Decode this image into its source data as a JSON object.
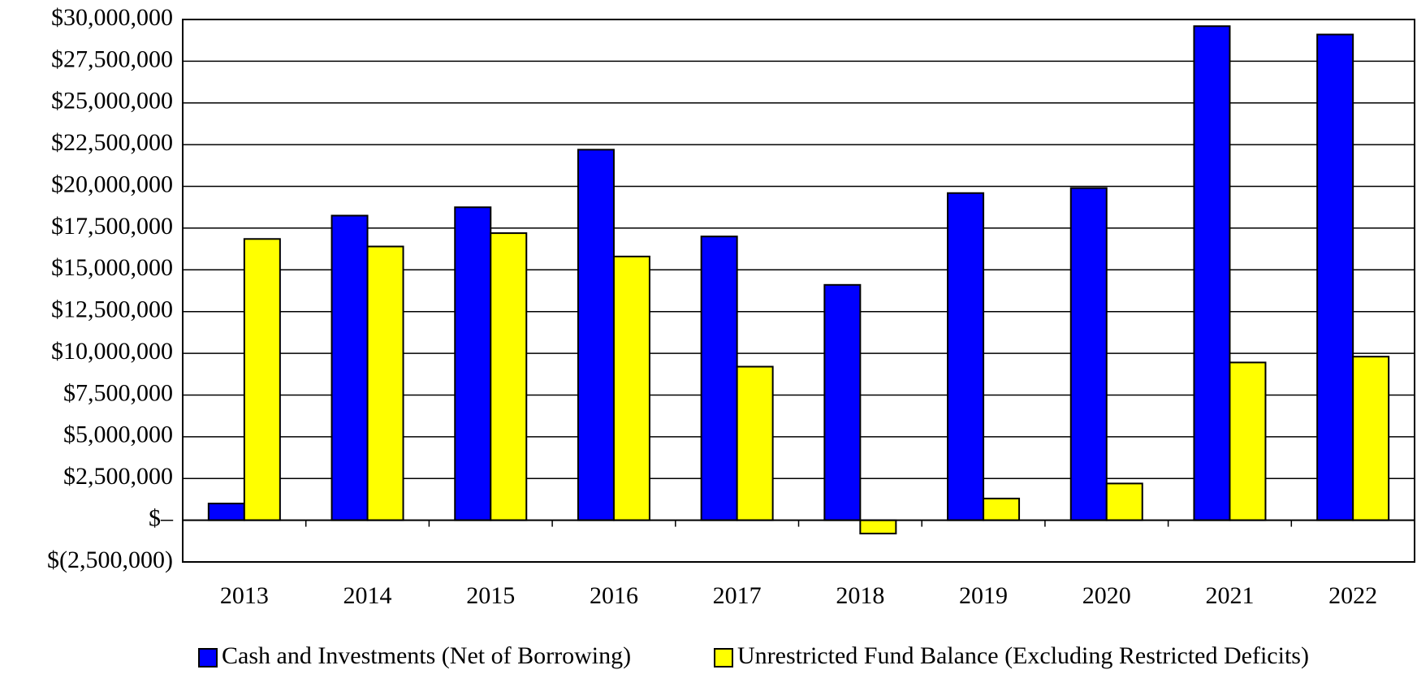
{
  "chart_data": {
    "type": "bar",
    "categories": [
      "2013",
      "2014",
      "2015",
      "2016",
      "2017",
      "2018",
      "2019",
      "2020",
      "2021",
      "2022"
    ],
    "series": [
      {
        "name": "Cash and Investments (Net of Borrowing)",
        "color": "#0000ff",
        "values": [
          1000000,
          18250000,
          18750000,
          22200000,
          17000000,
          14100000,
          19600000,
          19900000,
          29600000,
          29100000
        ]
      },
      {
        "name": "Unrestricted Fund Balance (Excluding Restricted Deficits)",
        "color": "#ffff00",
        "values": [
          16850000,
          16400000,
          17200000,
          15800000,
          9200000,
          -800000,
          1300000,
          2200000,
          9450000,
          9800000
        ]
      }
    ],
    "ylim": [
      -2500000,
      30000000
    ],
    "yticks": [
      {
        "value": -2500000,
        "label": "$(2,500,000)"
      },
      {
        "value": 0,
        "label": "$–"
      },
      {
        "value": 2500000,
        "label": "$2,500,000"
      },
      {
        "value": 5000000,
        "label": "$5,000,000"
      },
      {
        "value": 7500000,
        "label": "$7,500,000"
      },
      {
        "value": 10000000,
        "label": "$10,000,000"
      },
      {
        "value": 12500000,
        "label": "$12,500,000"
      },
      {
        "value": 15000000,
        "label": "$15,000,000"
      },
      {
        "value": 17500000,
        "label": "$17,500,000"
      },
      {
        "value": 20000000,
        "label": "$20,000,000"
      },
      {
        "value": 22500000,
        "label": "$22,500,000"
      },
      {
        "value": 25000000,
        "label": "$25,000,000"
      },
      {
        "value": 27500000,
        "label": "$27,500,000"
      },
      {
        "value": 30000000,
        "label": "$30,000,000"
      }
    ],
    "grid": true,
    "legend": "bottom"
  }
}
